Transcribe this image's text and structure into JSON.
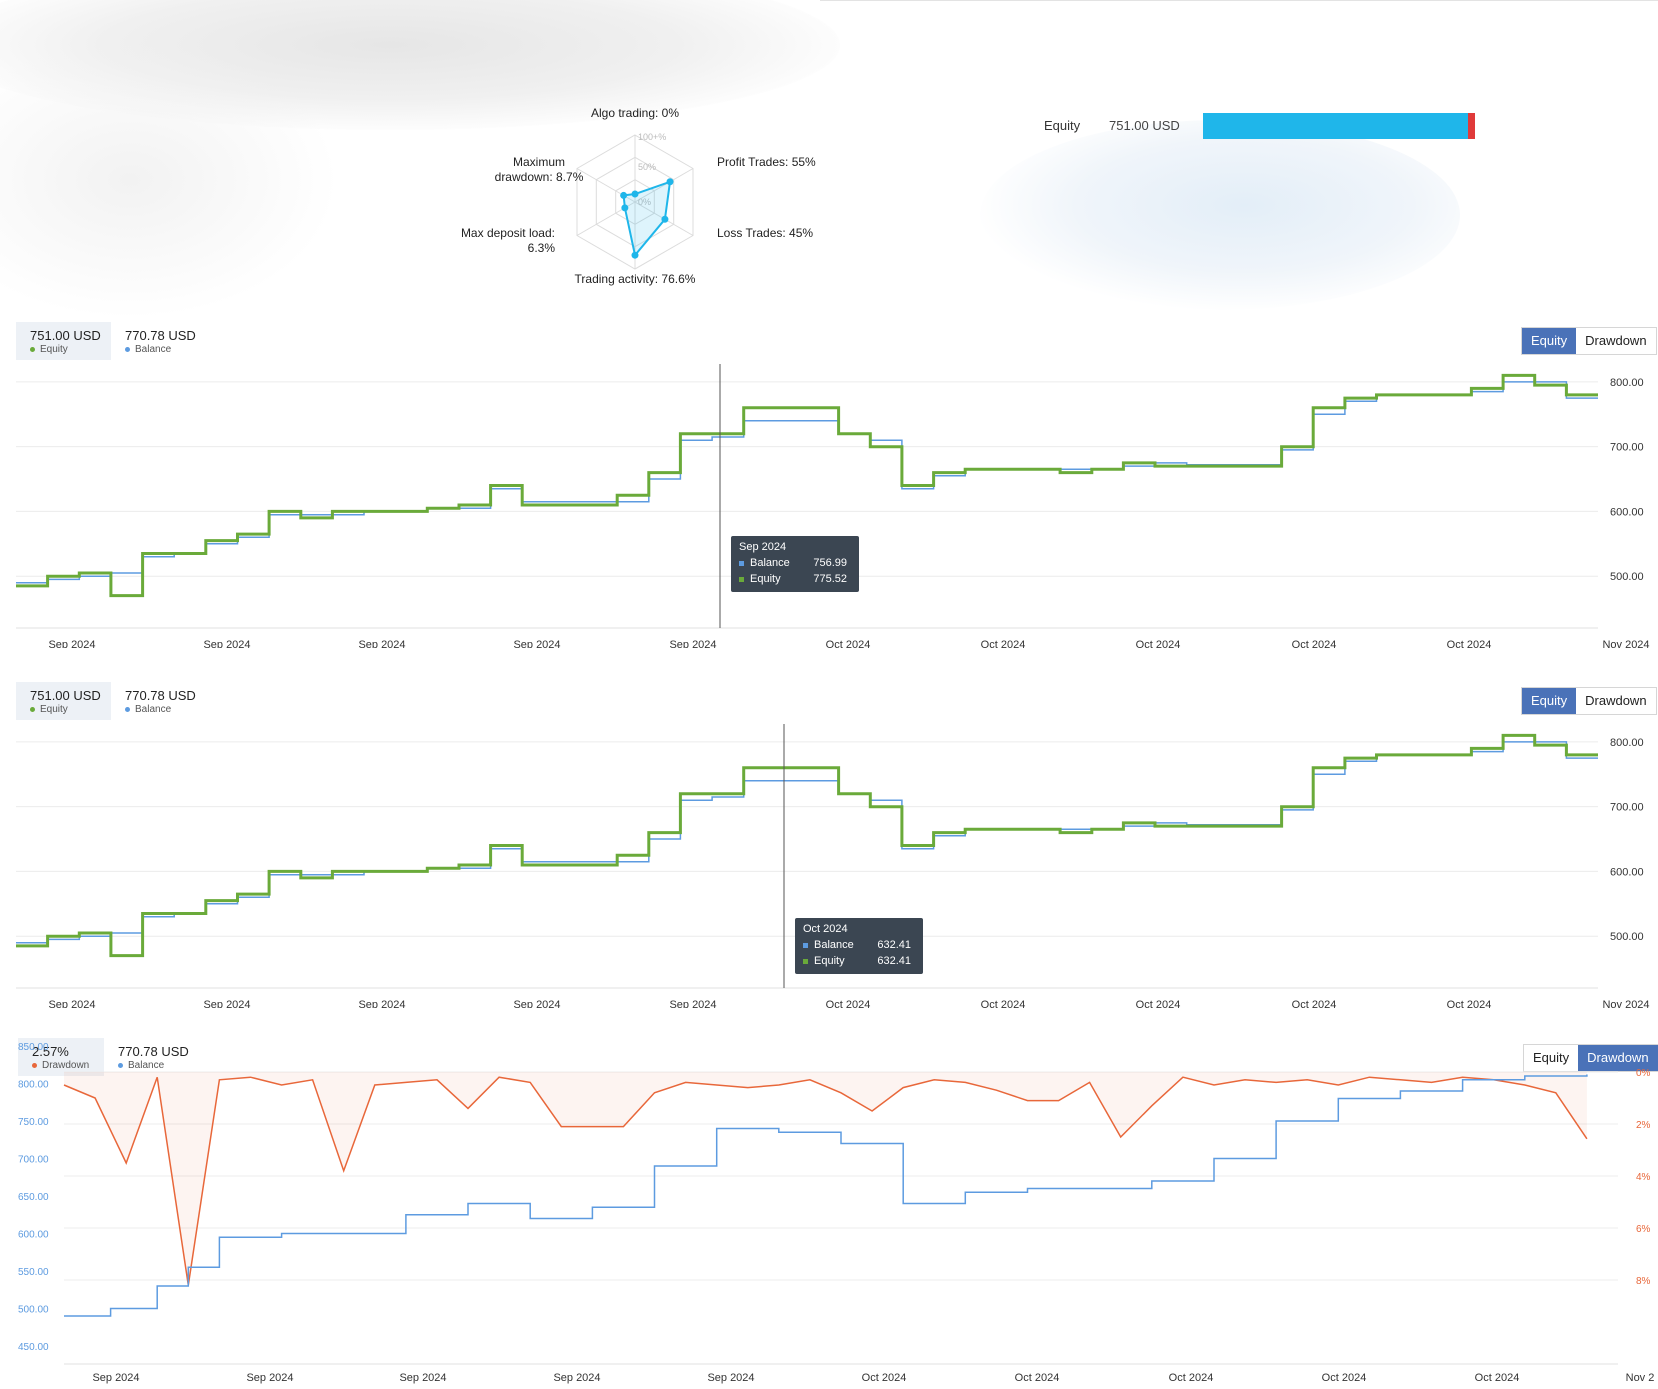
{
  "colors": {
    "equity": "#6aaa3a",
    "balance": "#5d9be0",
    "drawdown": "#e8673a",
    "radar": "#1fb6ea"
  },
  "radar": {
    "grid_labels": [
      "100+%",
      "50%",
      "0%"
    ],
    "axes": [
      {
        "label_lines": [
          "Algo trading: 0%"
        ],
        "value": 0
      },
      {
        "label_lines": [
          "Profit Trades: 55%"
        ],
        "value": 55
      },
      {
        "label_lines": [
          "Loss Trades: 45%"
        ],
        "value": 45
      },
      {
        "label_lines": [
          "Trading activity: 76.6%"
        ],
        "value": 76.6
      },
      {
        "label_lines": [
          "Max deposit load:",
          "6.3%"
        ],
        "value": 6.3
      },
      {
        "label_lines": [
          "Maximum",
          "drawdown: 8.7%"
        ],
        "value": 8.7
      }
    ]
  },
  "equity_bar": {
    "label": "Equity",
    "value": "751.00 USD",
    "fill_fraction": 0.974
  },
  "panels": [
    {
      "legend": [
        {
          "value": "751.00 USD",
          "name": "Equity",
          "dot": "equity",
          "active": true
        },
        {
          "value": "770.78 USD",
          "name": "Balance",
          "dot": "balance",
          "active": false
        }
      ],
      "tabs": [
        {
          "label": "Equity",
          "active": true
        },
        {
          "label": "Drawdown",
          "active": false
        }
      ],
      "tooltip": {
        "title": "Sep 2024",
        "rows": [
          {
            "name": "Balance",
            "value": "756.99"
          },
          {
            "name": "Equity",
            "value": "775.52"
          }
        ]
      }
    },
    {
      "legend": [
        {
          "value": "751.00 USD",
          "name": "Equity",
          "dot": "equity",
          "active": true
        },
        {
          "value": "770.78 USD",
          "name": "Balance",
          "dot": "balance",
          "active": false
        }
      ],
      "tabs": [
        {
          "label": "Equity",
          "active": true
        },
        {
          "label": "Drawdown",
          "active": false
        }
      ],
      "tooltip": {
        "title": "Oct 2024",
        "rows": [
          {
            "name": "Balance",
            "value": "632.41"
          },
          {
            "name": "Equity",
            "value": "632.41"
          }
        ]
      }
    },
    {
      "legend": [
        {
          "value": "2.57%",
          "name": "Drawdown",
          "dot": "drawdown",
          "active": true
        },
        {
          "value": "770.78 USD",
          "name": "Balance",
          "dot": "balance",
          "active": false
        }
      ],
      "tabs": [
        {
          "label": "Equity",
          "active": false
        },
        {
          "label": "Drawdown",
          "active": true
        }
      ]
    }
  ],
  "chart_data": [
    {
      "type": "line",
      "x_ticks": [
        "Sep 2024",
        "Sep 2024",
        "Sep 2024",
        "Sep 2024",
        "Sep 2024",
        "Oct 2024",
        "Oct 2024",
        "Oct 2024",
        "Oct 2024",
        "Oct 2024",
        "Nov 2024"
      ],
      "y_ticks": [
        "500.00",
        "600.00",
        "700.00",
        "800.00"
      ],
      "ylim": [
        420,
        840
      ],
      "x_range": [
        0,
        100
      ],
      "grid": true,
      "series": [
        {
          "name": "Equity",
          "x": [
            0,
            2,
            4,
            6,
            8,
            10,
            12,
            14,
            16,
            18,
            20,
            22,
            24,
            26,
            28,
            30,
            32,
            34,
            36,
            38,
            40,
            42,
            44,
            46,
            48,
            50,
            52,
            54,
            56,
            58,
            60,
            62,
            64,
            66,
            68,
            70,
            72,
            74,
            76,
            78,
            80,
            82,
            84,
            86,
            88,
            90,
            92,
            94,
            96,
            98
          ],
          "values": [
            485,
            500,
            505,
            470,
            535,
            535,
            555,
            565,
            600,
            590,
            600,
            600,
            600,
            605,
            610,
            640,
            610,
            610,
            610,
            625,
            660,
            720,
            720,
            760,
            760,
            760,
            720,
            700,
            640,
            660,
            665,
            665,
            665,
            660,
            665,
            675,
            670,
            670,
            670,
            670,
            700,
            760,
            775,
            780,
            780,
            780,
            790,
            810,
            795,
            780
          ]
        },
        {
          "name": "Balance",
          "x": [
            0,
            2,
            4,
            6,
            8,
            10,
            12,
            14,
            16,
            18,
            20,
            22,
            24,
            26,
            28,
            30,
            32,
            34,
            36,
            38,
            40,
            42,
            44,
            46,
            48,
            50,
            52,
            54,
            56,
            58,
            60,
            62,
            64,
            66,
            68,
            70,
            72,
            74,
            76,
            78,
            80,
            82,
            84,
            86,
            88,
            90,
            92,
            94,
            96,
            98
          ],
          "values": [
            490,
            495,
            500,
            505,
            530,
            535,
            550,
            560,
            595,
            595,
            595,
            600,
            600,
            605,
            605,
            635,
            615,
            615,
            615,
            615,
            650,
            710,
            715,
            740,
            740,
            740,
            720,
            710,
            635,
            655,
            665,
            665,
            665,
            665,
            665,
            670,
            675,
            672,
            672,
            672,
            695,
            750,
            770,
            780,
            780,
            780,
            785,
            800,
            800,
            775
          ]
        }
      ]
    },
    {
      "type": "line",
      "x_ticks": [
        "Sep 2024",
        "Sep 2024",
        "Sep 2024",
        "Sep 2024",
        "Sep 2024",
        "Oct 2024",
        "Oct 2024",
        "Oct 2024",
        "Oct 2024",
        "Oct 2024",
        "Nov 2024"
      ],
      "y_ticks": [
        "500.00",
        "600.00",
        "700.00",
        "800.00"
      ],
      "ylim": [
        420,
        840
      ],
      "x_range": [
        0,
        100
      ],
      "grid": true,
      "series": [
        {
          "name": "Equity",
          "x": [
            0,
            2,
            4,
            6,
            8,
            10,
            12,
            14,
            16,
            18,
            20,
            22,
            24,
            26,
            28,
            30,
            32,
            34,
            36,
            38,
            40,
            42,
            44,
            46,
            48,
            50,
            52,
            54,
            56,
            58,
            60,
            62,
            64,
            66,
            68,
            70,
            72,
            74,
            76,
            78,
            80,
            82,
            84,
            86,
            88,
            90,
            92,
            94,
            96,
            98
          ],
          "values": [
            485,
            500,
            505,
            470,
            535,
            535,
            555,
            565,
            600,
            590,
            600,
            600,
            600,
            605,
            610,
            640,
            610,
            610,
            610,
            625,
            660,
            720,
            720,
            760,
            760,
            760,
            720,
            700,
            640,
            660,
            665,
            665,
            665,
            660,
            665,
            675,
            670,
            670,
            670,
            670,
            700,
            760,
            775,
            780,
            780,
            780,
            790,
            810,
            795,
            780
          ]
        },
        {
          "name": "Balance",
          "x": [
            0,
            2,
            4,
            6,
            8,
            10,
            12,
            14,
            16,
            18,
            20,
            22,
            24,
            26,
            28,
            30,
            32,
            34,
            36,
            38,
            40,
            42,
            44,
            46,
            48,
            50,
            52,
            54,
            56,
            58,
            60,
            62,
            64,
            66,
            68,
            70,
            72,
            74,
            76,
            78,
            80,
            82,
            84,
            86,
            88,
            90,
            92,
            94,
            96,
            98
          ],
          "values": [
            490,
            495,
            500,
            505,
            530,
            535,
            550,
            560,
            595,
            595,
            595,
            600,
            600,
            605,
            605,
            635,
            615,
            615,
            615,
            615,
            650,
            710,
            715,
            740,
            740,
            740,
            720,
            710,
            635,
            655,
            665,
            665,
            665,
            665,
            665,
            670,
            675,
            672,
            672,
            672,
            695,
            750,
            770,
            780,
            780,
            780,
            785,
            800,
            800,
            775
          ]
        }
      ]
    },
    {
      "type": "line",
      "x_ticks": [
        "Sep 2024",
        "Sep 2024",
        "Sep 2024",
        "Sep 2024",
        "Sep 2024",
        "Oct 2024",
        "Oct 2024",
        "Oct 2024",
        "Oct 2024",
        "Oct 2024",
        "Nov 2"
      ],
      "y_ticks_left": [
        "850.00",
        "800.00",
        "750.00",
        "700.00",
        "650.00",
        "600.00",
        "550.00",
        "500.00",
        "450.00"
      ],
      "y_ticks_right": [
        "0%",
        "2%",
        "4%",
        "6%",
        "8%"
      ],
      "ylim_left": [
        450,
        850
      ],
      "ylim_right": [
        0,
        8.8
      ],
      "x_range": [
        0,
        100
      ],
      "grid": true,
      "series": [
        {
          "name": "Balance",
          "axis": "left",
          "x": [
            0,
            3,
            6,
            8,
            10,
            14,
            18,
            22,
            26,
            30,
            34,
            38,
            42,
            46,
            50,
            54,
            58,
            62,
            66,
            70,
            74,
            78,
            82,
            86,
            90,
            94,
            98
          ],
          "values": [
            490,
            500,
            530,
            555,
            595,
            600,
            600,
            625,
            640,
            620,
            635,
            690,
            740,
            735,
            720,
            640,
            655,
            660,
            660,
            670,
            700,
            750,
            780,
            790,
            805,
            810,
            812
          ]
        },
        {
          "name": "Drawdown",
          "axis": "right",
          "x": [
            0,
            2,
            4,
            6,
            8,
            10,
            12,
            14,
            16,
            18,
            20,
            22,
            24,
            26,
            28,
            30,
            32,
            34,
            36,
            38,
            40,
            42,
            44,
            46,
            48,
            50,
            52,
            54,
            56,
            58,
            60,
            62,
            64,
            66,
            68,
            70,
            72,
            74,
            76,
            78,
            80,
            82,
            84,
            86,
            88,
            90,
            92,
            94,
            96,
            98
          ],
          "values": [
            0.5,
            1.0,
            3.5,
            0.2,
            8.2,
            0.3,
            0.2,
            0.5,
            0.3,
            3.8,
            0.5,
            0.4,
            0.3,
            1.4,
            0.2,
            0.4,
            2.1,
            2.1,
            2.1,
            0.8,
            0.4,
            0.5,
            0.6,
            0.5,
            0.3,
            0.8,
            1.5,
            0.6,
            0.3,
            0.4,
            0.7,
            1.1,
            1.1,
            0.4,
            2.5,
            1.3,
            0.2,
            0.5,
            0.3,
            0.4,
            0.3,
            0.5,
            0.2,
            0.3,
            0.4,
            0.2,
            0.3,
            0.5,
            0.8,
            2.57
          ]
        }
      ]
    }
  ]
}
